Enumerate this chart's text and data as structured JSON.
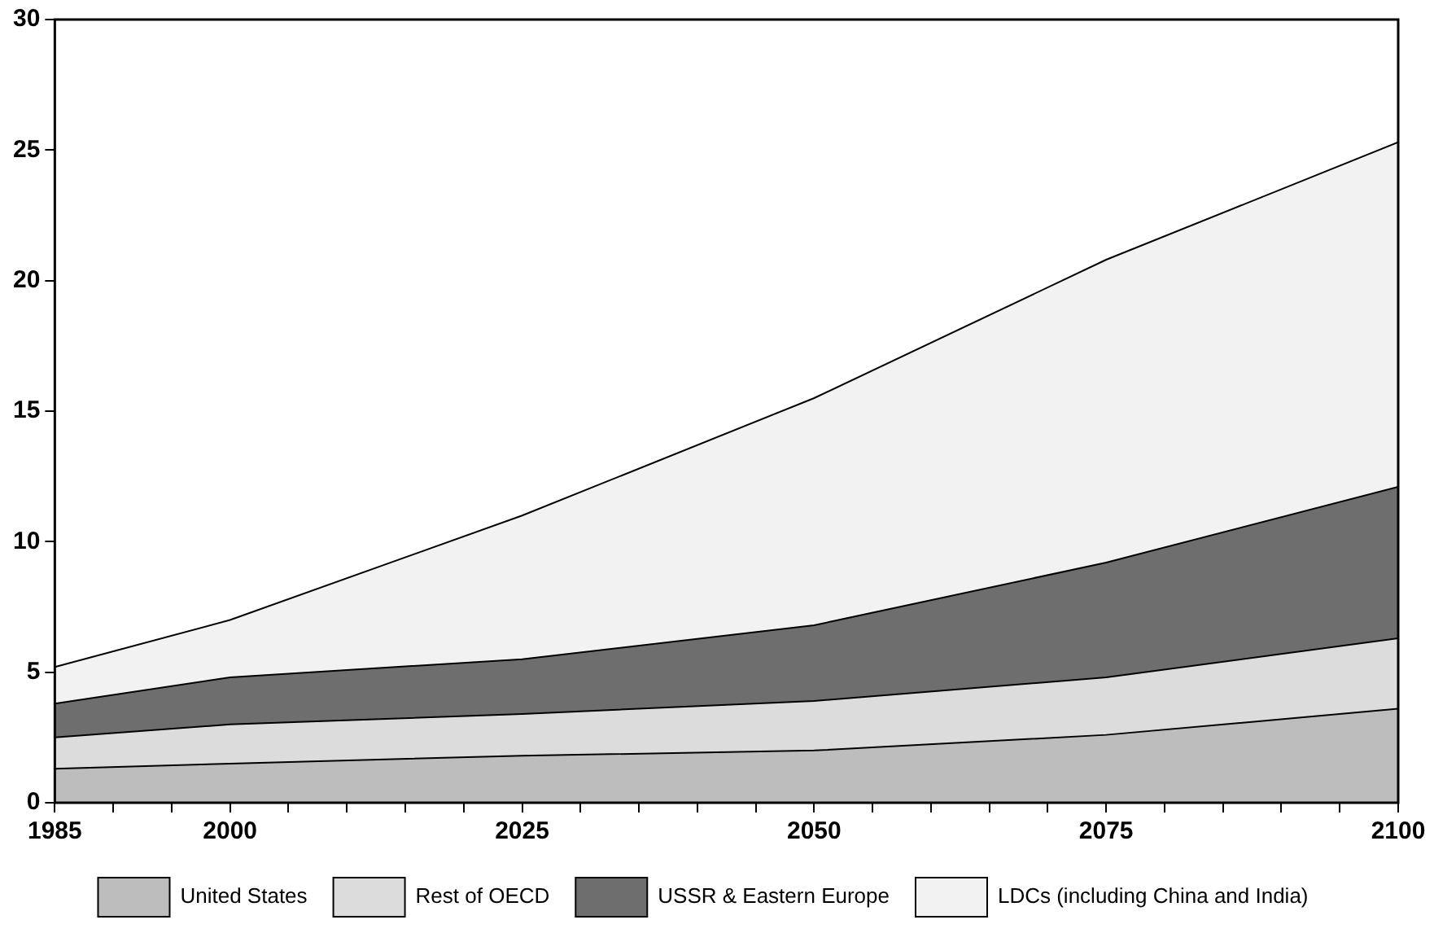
{
  "chart_data": {
    "type": "area",
    "stacked": true,
    "x": [
      1985,
      2000,
      2025,
      2050,
      2075,
      2100
    ],
    "series": [
      {
        "name": "United States",
        "color": "#bdbdbd",
        "values": [
          1.3,
          1.5,
          1.8,
          2.0,
          2.6,
          3.6
        ]
      },
      {
        "name": "Rest of OECD",
        "color": "#dcdcdc",
        "values": [
          1.2,
          1.5,
          1.6,
          1.9,
          2.2,
          2.7
        ]
      },
      {
        "name": "USSR & Eastern Europe",
        "color": "#6e6e6e",
        "values": [
          1.3,
          1.8,
          2.1,
          2.9,
          4.4,
          5.8
        ]
      },
      {
        "name": "LDCs (including China and India)",
        "color": "#f2f2f2",
        "values": [
          1.4,
          2.2,
          5.5,
          8.7,
          11.6,
          13.2
        ]
      }
    ],
    "xlim": [
      1985,
      2100
    ],
    "xticks": [
      1985,
      {
        "value": 1990,
        "label": null
      },
      {
        "value": 1995,
        "label": null
      },
      2000,
      {
        "value": 2005,
        "label": null
      },
      {
        "value": 2010,
        "label": null
      },
      {
        "value": 2015,
        "label": null
      },
      {
        "value": 2020,
        "label": null
      },
      2025,
      {
        "value": 2030,
        "label": null
      },
      {
        "value": 2035,
        "label": null
      },
      {
        "value": 2040,
        "label": null
      },
      {
        "value": 2045,
        "label": null
      },
      2050,
      {
        "value": 2055,
        "label": null
      },
      {
        "value": 2060,
        "label": null
      },
      {
        "value": 2065,
        "label": null
      },
      {
        "value": 2070,
        "label": null
      },
      2075,
      {
        "value": 2080,
        "label": null
      },
      {
        "value": 2085,
        "label": null
      },
      {
        "value": 2090,
        "label": null
      },
      {
        "value": 2095,
        "label": null
      },
      2100
    ],
    "ylim": [
      0,
      30
    ],
    "yticks": [
      0,
      5,
      10,
      15,
      20,
      25,
      30
    ],
    "grid": false,
    "legend": "bottom"
  }
}
